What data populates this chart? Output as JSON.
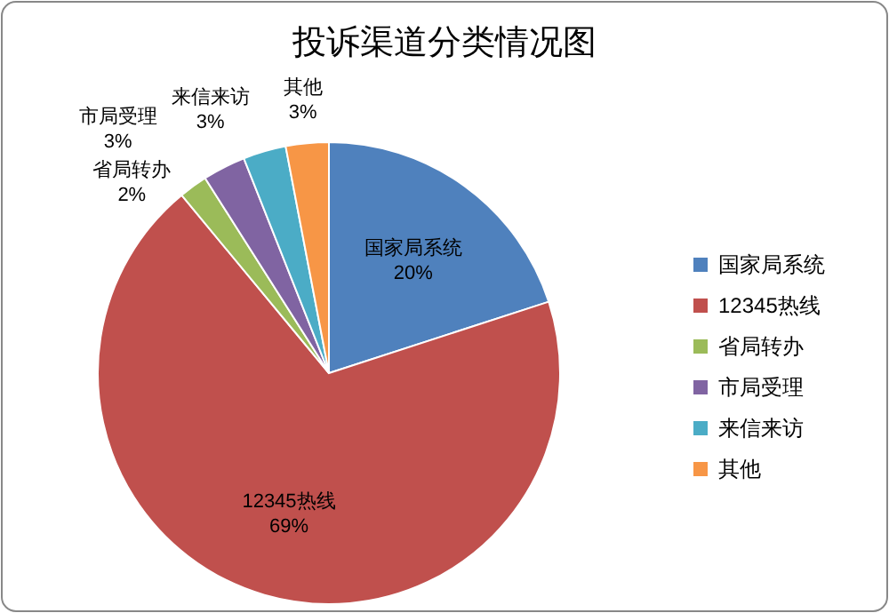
{
  "chart_data": {
    "type": "pie",
    "title": "投诉渠道分类情况图",
    "categories": [
      "国家局系统",
      "12345热线",
      "省局转办",
      "市局受理",
      "来信来访",
      "其他"
    ],
    "values": [
      20,
      69,
      2,
      3,
      3,
      3
    ],
    "colors": [
      "#4f81bd",
      "#c0504d",
      "#9bbb59",
      "#8064a2",
      "#4bacc6",
      "#f79646"
    ],
    "value_labels": [
      "20%",
      "69%",
      "2%",
      "3%",
      "3%",
      "3%"
    ],
    "legend": "right"
  }
}
